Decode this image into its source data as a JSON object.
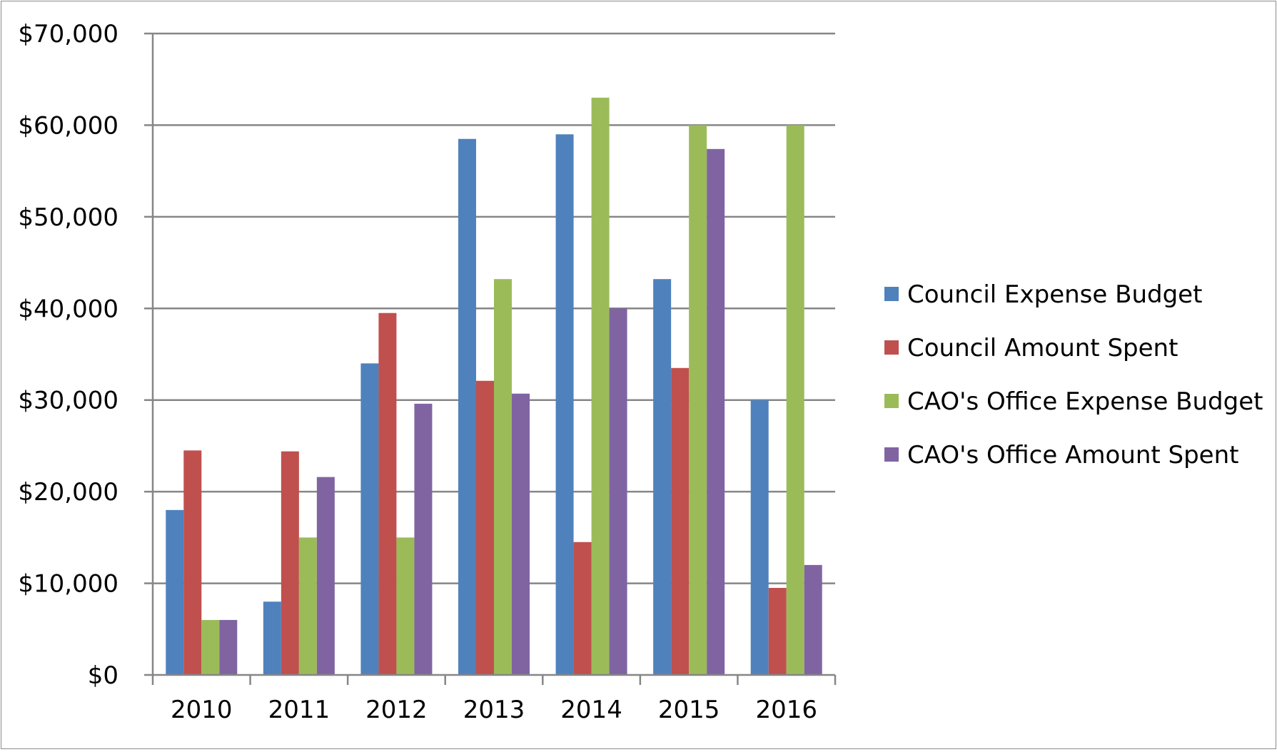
{
  "chart_data": {
    "type": "bar",
    "title": "",
    "xlabel": "",
    "ylabel": "",
    "categories": [
      "2010",
      "2011",
      "2012",
      "2013",
      "2014",
      "2015",
      "2016"
    ],
    "ylim": [
      0,
      70000
    ],
    "y_ticks": [
      0,
      10000,
      20000,
      30000,
      40000,
      50000,
      60000,
      70000
    ],
    "y_tick_labels": [
      "$0",
      "$10,000",
      "$20,000",
      "$30,000",
      "$40,000",
      "$50,000",
      "$60,000",
      "$70,000"
    ],
    "grid": true,
    "legend_position": "right",
    "series": [
      {
        "name": "Council Expense Budget",
        "color": "#4f81bd",
        "values": [
          18000,
          8000,
          34000,
          58500,
          59000,
          43200,
          30000
        ]
      },
      {
        "name": "Council Amount Spent",
        "color": "#c0504d",
        "values": [
          24500,
          24400,
          39500,
          32100,
          14500,
          33500,
          9500
        ]
      },
      {
        "name": "CAO's Office Expense Budget",
        "color": "#9bbb59",
        "values": [
          6000,
          15000,
          15000,
          43200,
          63000,
          60000,
          60000
        ]
      },
      {
        "name": "CAO's Office Amount Spent",
        "color": "#8064a2",
        "values": [
          6000,
          21600,
          29600,
          30700,
          40000,
          57400,
          12000
        ]
      }
    ]
  }
}
